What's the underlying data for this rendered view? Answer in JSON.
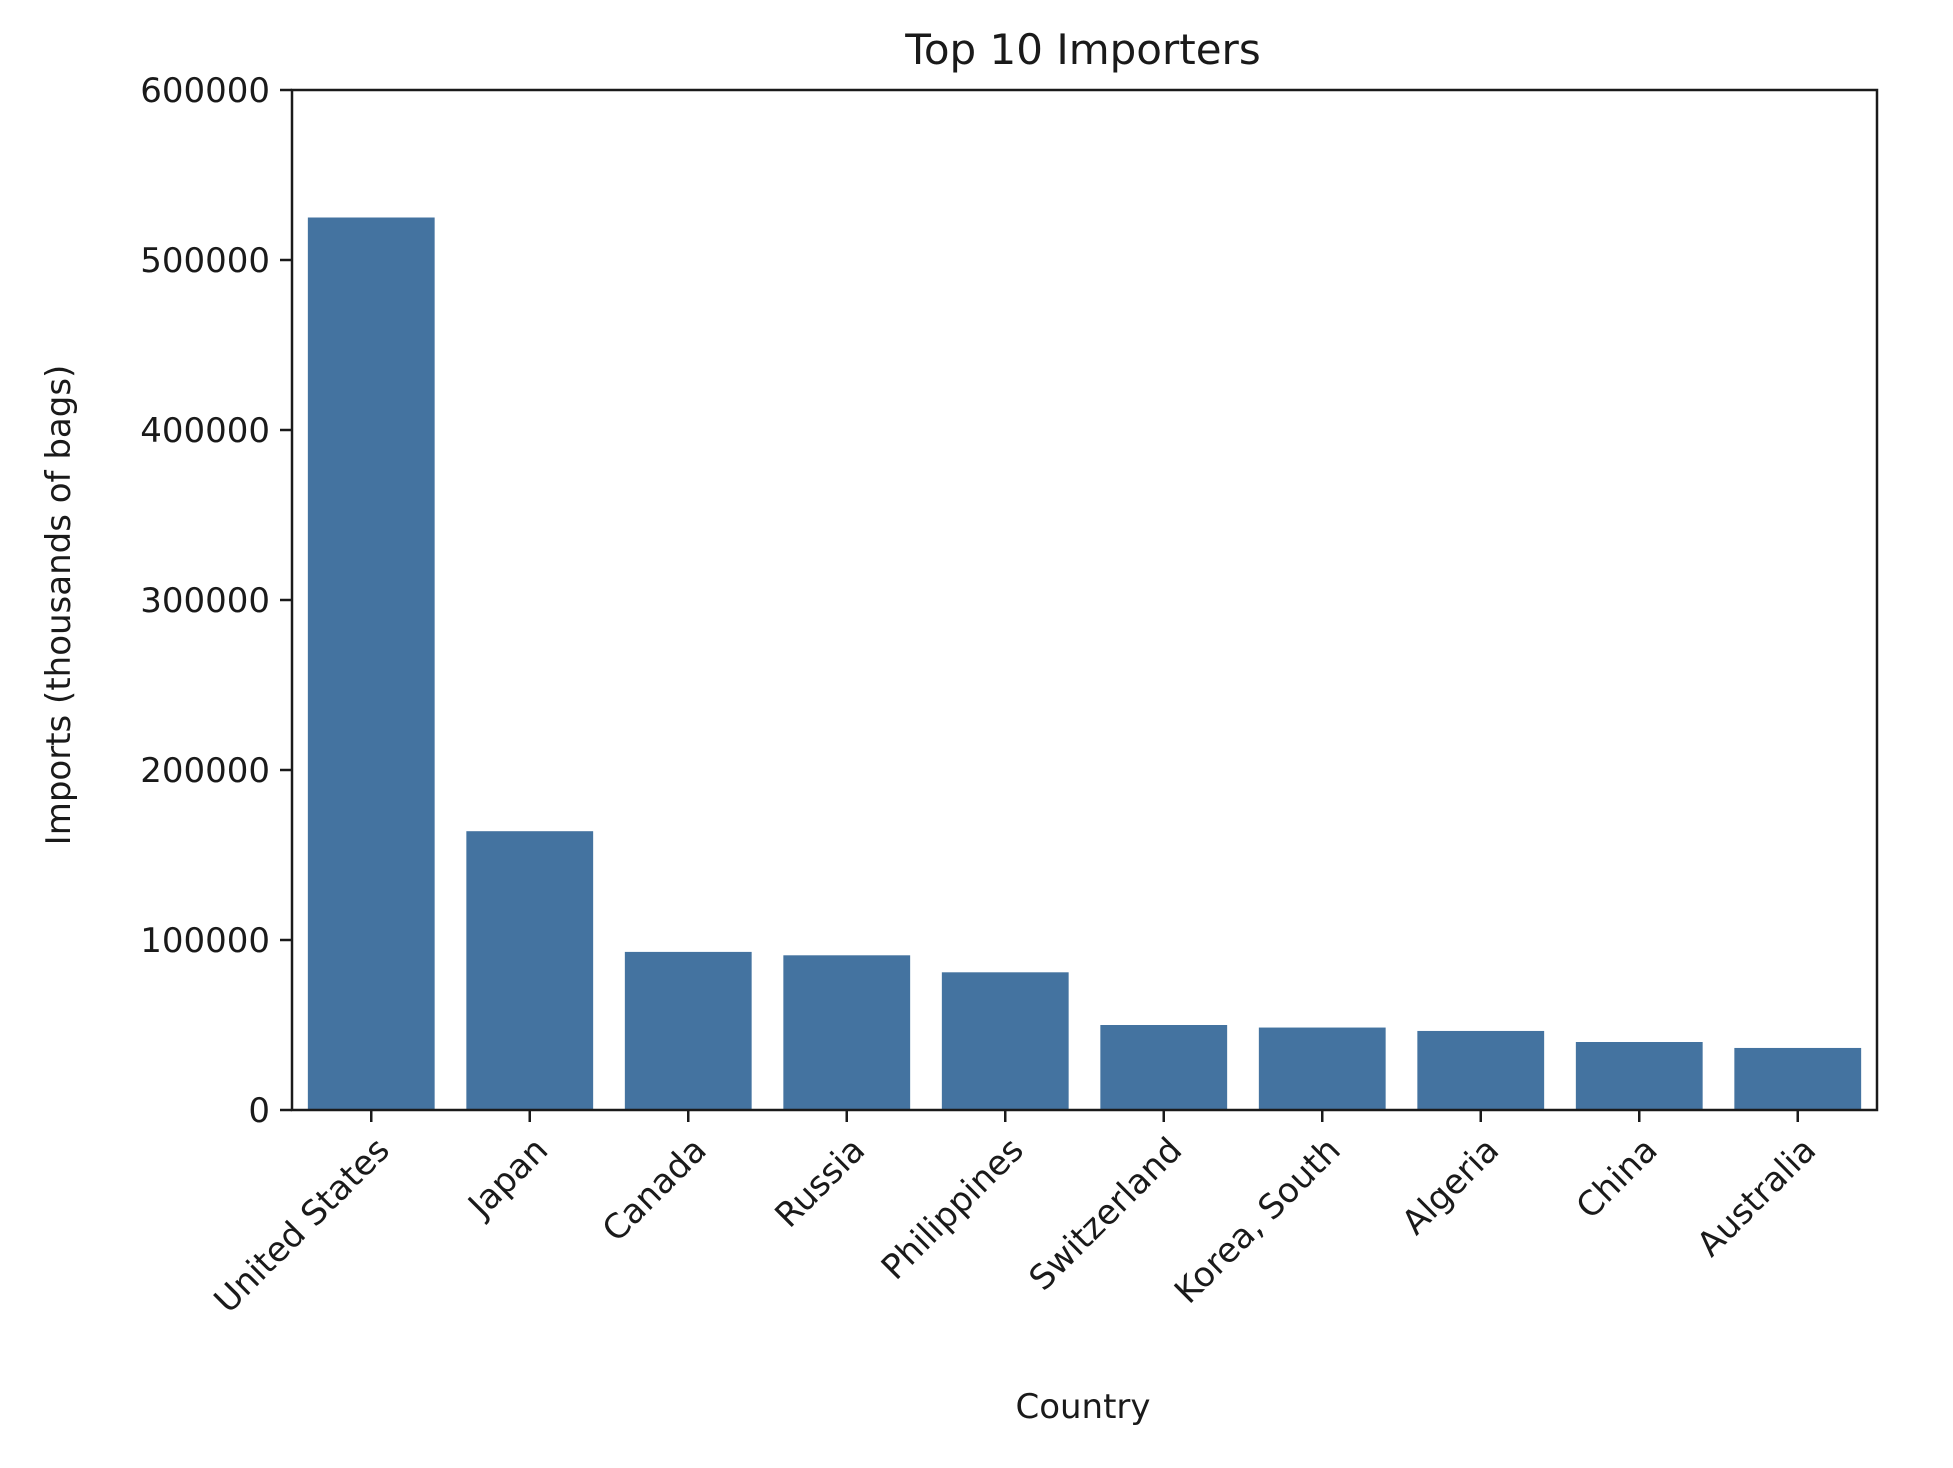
{
  "chart_data": {
    "type": "bar",
    "title": "Top 10 Importers",
    "xlabel": "Country",
    "ylabel": "Imports (thousands of bags)",
    "categories": [
      "United States",
      "Japan",
      "Canada",
      "Russia",
      "Philippines",
      "Switzerland",
      "Korea, South",
      "Algeria",
      "China",
      "Australia"
    ],
    "values": [
      525000,
      164000,
      93000,
      91000,
      81000,
      50000,
      48500,
      46500,
      40000,
      36500
    ],
    "ylim": [
      0,
      600000
    ],
    "yticks": [
      "0",
      "100000",
      "200000",
      "300000",
      "400000",
      "500000",
      "600000"
    ],
    "grid": false,
    "legend": "none",
    "bar_color": "#4473a0"
  }
}
